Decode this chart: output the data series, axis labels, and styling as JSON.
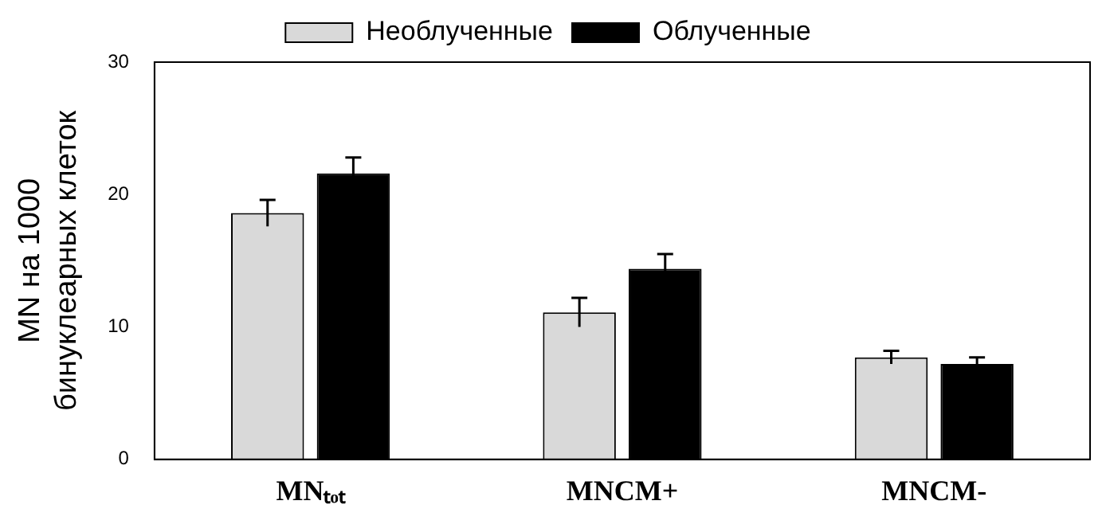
{
  "chart_data": {
    "type": "bar",
    "ylabel": "MN на 1000\nбинуклеарных клеток",
    "categories": [
      "MNₜₒₜ",
      "MNCM+",
      "MNCM-"
    ],
    "series": [
      {
        "name": "Необлученные",
        "color": "#d9d9d9",
        "values": [
          18.6,
          11.1,
          7.7
        ],
        "errors": [
          1.0,
          1.1,
          0.5
        ]
      },
      {
        "name": "Облученные",
        "color": "#000000",
        "values": [
          21.6,
          14.4,
          7.2
        ],
        "errors": [
          1.2,
          1.1,
          0.5
        ]
      }
    ],
    "ylim": [
      0,
      30
    ],
    "yticks": [
      0,
      10,
      20,
      30
    ],
    "grid": false,
    "legend": "top"
  }
}
